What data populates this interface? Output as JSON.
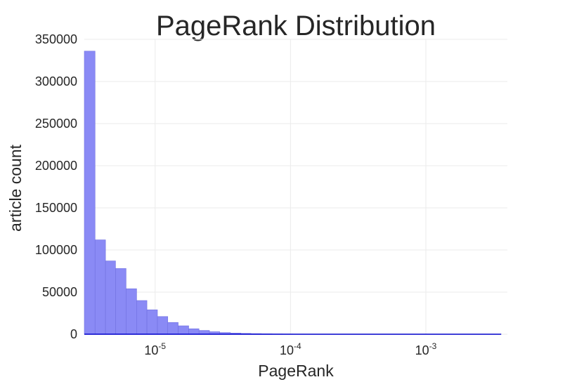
{
  "chart_data": {
    "type": "bar",
    "title": "PageRank Distribution",
    "xlabel": "PageRank",
    "ylabel": "article count",
    "x_scale": "log",
    "x_tick_labels": [
      {
        "base": "10",
        "exp": "-5"
      },
      {
        "base": "10",
        "exp": "-4"
      },
      {
        "base": "10",
        "exp": "-3"
      }
    ],
    "y_tick_labels": [
      "0",
      "50000",
      "100000",
      "150000",
      "200000",
      "250000",
      "300000",
      "350000"
    ],
    "ylim": [
      0,
      350000
    ],
    "xlim": [
      3e-06,
      0.004
    ],
    "grid": true,
    "bar_color": "#8a8af5",
    "bar_edge_color": "#7070e0",
    "baseline_color": "#0000cc",
    "bins": [
      {
        "x0": 3e-06,
        "x1": 3.6e-06,
        "value": 336000
      },
      {
        "x0": 3.6e-06,
        "x1": 4.3e-06,
        "value": 112000
      },
      {
        "x0": 4.3e-06,
        "x1": 5.1e-06,
        "value": 87000
      },
      {
        "x0": 5.1e-06,
        "x1": 6.1e-06,
        "value": 78000
      },
      {
        "x0": 6.1e-06,
        "x1": 7.3e-06,
        "value": 54000
      },
      {
        "x0": 7.3e-06,
        "x1": 8.7e-06,
        "value": 40000
      },
      {
        "x0": 8.7e-06,
        "x1": 1.04e-05,
        "value": 29000
      },
      {
        "x0": 1.04e-05,
        "x1": 1.24e-05,
        "value": 21000
      },
      {
        "x0": 1.24e-05,
        "x1": 1.48e-05,
        "value": 14000
      },
      {
        "x0": 1.48e-05,
        "x1": 1.77e-05,
        "value": 10000
      },
      {
        "x0": 1.77e-05,
        "x1": 2.11e-05,
        "value": 6500
      },
      {
        "x0": 2.11e-05,
        "x1": 2.52e-05,
        "value": 4500
      },
      {
        "x0": 2.52e-05,
        "x1": 3e-05,
        "value": 3000
      },
      {
        "x0": 3e-05,
        "x1": 3.6e-05,
        "value": 2000
      },
      {
        "x0": 3.6e-05,
        "x1": 4.3e-05,
        "value": 1400
      },
      {
        "x0": 4.3e-05,
        "x1": 5.1e-05,
        "value": 1000
      },
      {
        "x0": 5.1e-05,
        "x1": 6.1e-05,
        "value": 700
      },
      {
        "x0": 6.1e-05,
        "x1": 7.3e-05,
        "value": 500
      },
      {
        "x0": 7.3e-05,
        "x1": 8.7e-05,
        "value": 350
      },
      {
        "x0": 8.7e-05,
        "x1": 0.000104,
        "value": 250
      },
      {
        "x0": 0.000104,
        "x1": 0.000124,
        "value": 180
      },
      {
        "x0": 0.000124,
        "x1": 0.000148,
        "value": 120
      },
      {
        "x0": 0.000148,
        "x1": 0.000177,
        "value": 90
      },
      {
        "x0": 0.000177,
        "x1": 0.000211,
        "value": 60
      },
      {
        "x0": 0.000211,
        "x1": 0.000252,
        "value": 45
      },
      {
        "x0": 0.000252,
        "x1": 0.0003,
        "value": 30
      },
      {
        "x0": 0.0003,
        "x1": 0.00036,
        "value": 22
      },
      {
        "x0": 0.00036,
        "x1": 0.00043,
        "value": 15
      },
      {
        "x0": 0.00043,
        "x1": 0.00051,
        "value": 10
      },
      {
        "x0": 0.00051,
        "x1": 0.00061,
        "value": 8
      },
      {
        "x0": 0.00061,
        "x1": 0.00073,
        "value": 6
      },
      {
        "x0": 0.00073,
        "x1": 0.00087,
        "value": 4
      },
      {
        "x0": 0.00087,
        "x1": 0.00104,
        "value": 3
      },
      {
        "x0": 0.00104,
        "x1": 0.00124,
        "value": 2
      },
      {
        "x0": 0.00124,
        "x1": 0.00148,
        "value": 2
      },
      {
        "x0": 0.00148,
        "x1": 0.00177,
        "value": 1
      },
      {
        "x0": 0.00177,
        "x1": 0.00211,
        "value": 1
      },
      {
        "x0": 0.00211,
        "x1": 0.00252,
        "value": 1
      },
      {
        "x0": 0.00252,
        "x1": 0.003,
        "value": 1
      },
      {
        "x0": 0.003,
        "x1": 0.0036,
        "value": 1
      }
    ]
  }
}
